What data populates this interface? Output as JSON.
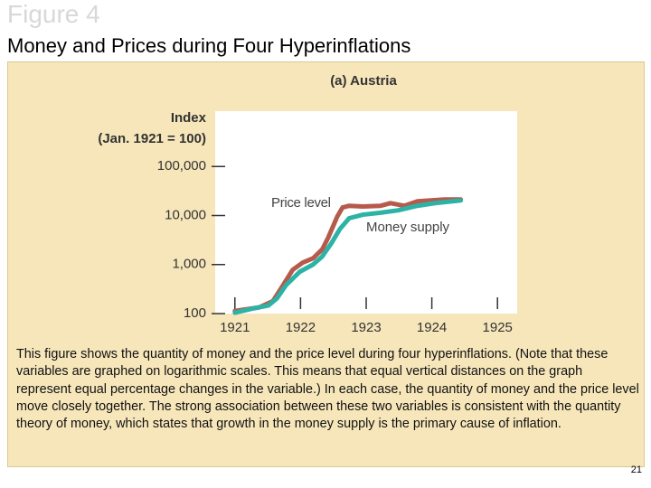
{
  "slide": {
    "figure_label": "Figure 4",
    "title": "Money and Prices during Four Hyperinflations",
    "caption": "This figure shows the quantity of money and the price level during four hyperinflations. (Note that these variables are graphed on logarithmic scales. This means that equal vertical distances on the graph represent equal percentage changes in the variable.) In each case, the quantity of money and the price level move closely together. The strong association between these two variables is consistent with the quantity theory of money, which states that growth in the money supply is the primary cause of inflation.",
    "page_number": "21"
  },
  "chart_data": {
    "type": "line",
    "title": "(a) Austria",
    "y_label": [
      "Index",
      "(Jan. 1921 = 100)"
    ],
    "ylog": true,
    "ylim": [
      100,
      1000000
    ],
    "yticks": [
      100,
      {
        "value": 1000,
        "label": "1,000"
      },
      {
        "value": 10000,
        "label": "10,000"
      },
      {
        "value": 100000,
        "label": "100,000"
      }
    ],
    "xlim": [
      1920.7,
      1925.3
    ],
    "xticks": [
      1921,
      1922,
      1923,
      1924,
      1925
    ],
    "series": [
      {
        "name": "Price level",
        "color": "#b65a4c",
        "x": [
          1921,
          1921.37,
          1921.58,
          1921.71,
          1921.88,
          1922.03,
          1922.19,
          1922.33,
          1922.42,
          1922.56,
          1922.64,
          1922.74,
          1922.95,
          1923.22,
          1923.37,
          1923.58,
          1923.78,
          1924.19,
          1924.44
        ],
        "values": [
          113,
          134,
          180,
          337,
          780,
          1090,
          1340,
          2040,
          3520,
          9600,
          14600,
          15800,
          15300,
          15800,
          17900,
          15800,
          19500,
          21200,
          21200
        ]
      },
      {
        "name": "Money supply",
        "color": "#2db3a6",
        "x": [
          1921,
          1921.3,
          1921.51,
          1921.64,
          1921.78,
          1921.99,
          1922.19,
          1922.33,
          1922.47,
          1922.6,
          1922.74,
          1922.95,
          1923.22,
          1923.49,
          1923.78,
          1924.05,
          1924.44
        ],
        "values": [
          104,
          129,
          146,
          204,
          381,
          716,
          1000,
          1460,
          2720,
          5320,
          8800,
          10400,
          11400,
          12800,
          15800,
          17900,
          20300
        ]
      }
    ]
  }
}
